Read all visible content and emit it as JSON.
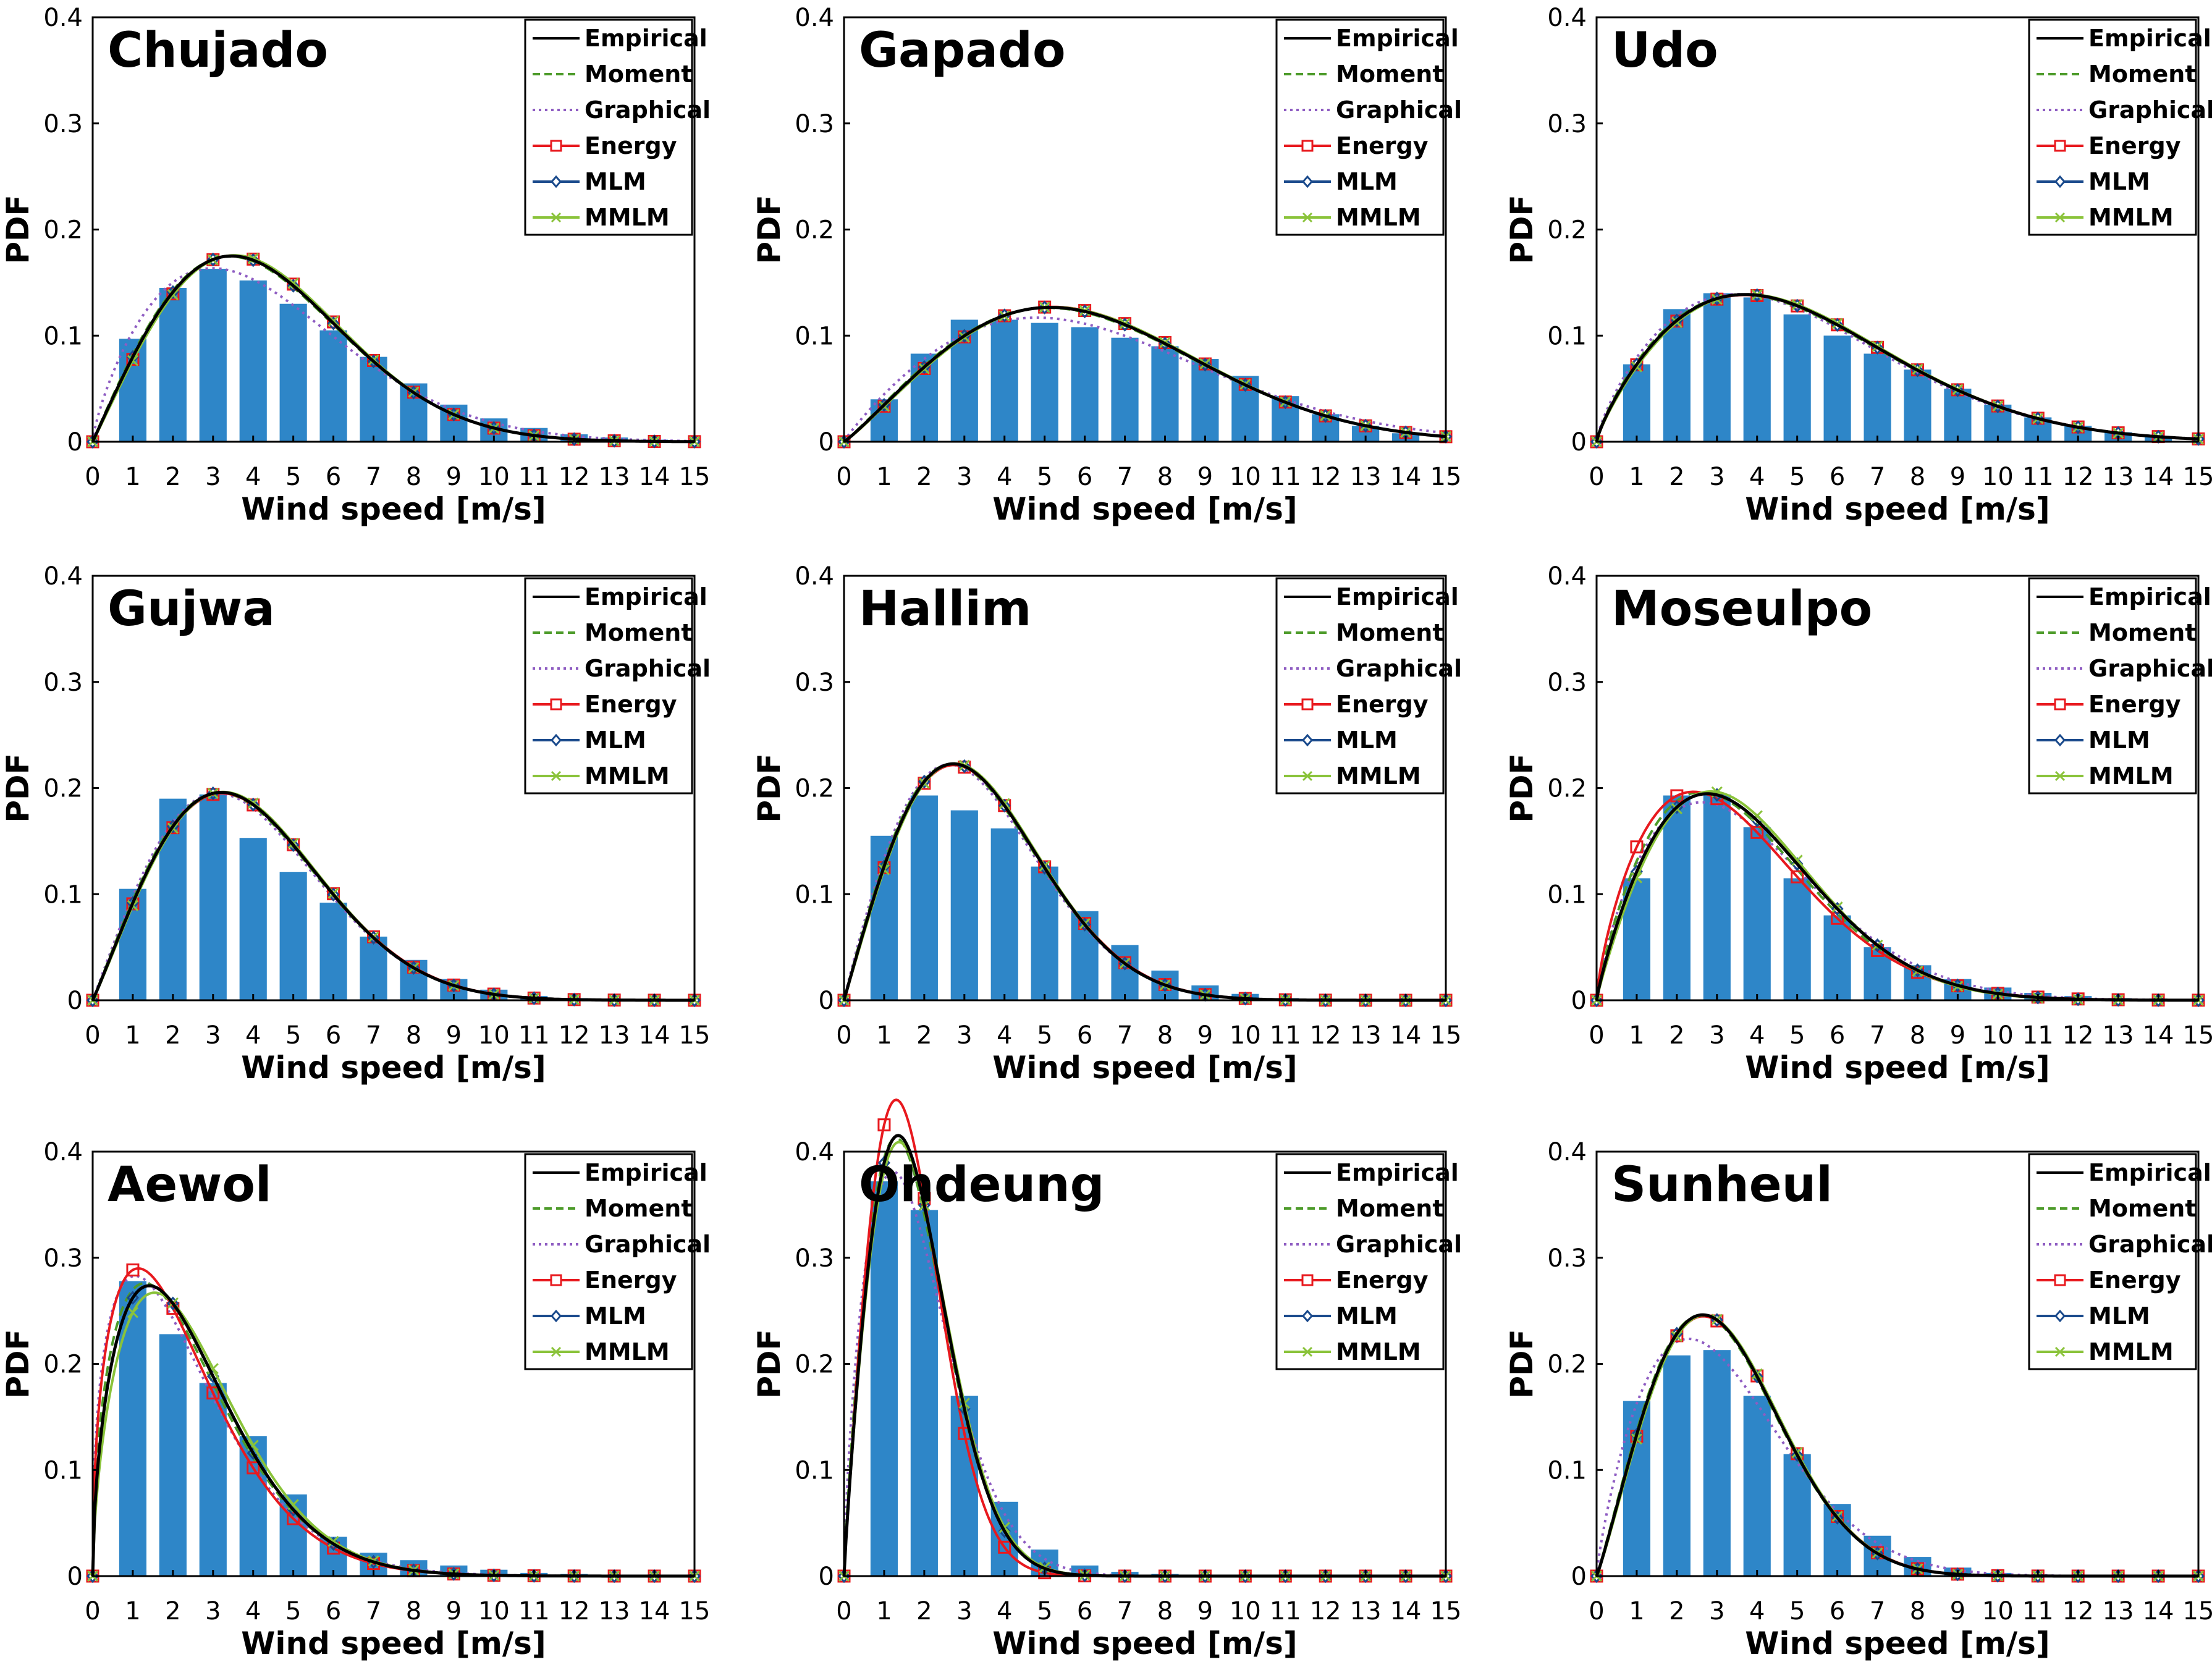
{
  "chart_data": {
    "type": "bar",
    "layout": "3x3 grid of panels",
    "colors": {
      "bars": "#2e86c8",
      "Empirical": "#000000",
      "Moment": "#4d9b2a",
      "Graphical": "#8e5cc2",
      "Energy": "#e8191e",
      "MLM": "#1a4a8c",
      "MMLM": "#8ac33a"
    },
    "series_styles": {
      "Empirical": "solid",
      "Moment": "dashed",
      "Graphical": "dotted",
      "Energy": "solid-square-markers",
      "MLM": "solid-diamond-markers",
      "MMLM": "solid-x-markers"
    },
    "legend": [
      "Empirical",
      "Moment",
      "Graphical",
      "Energy",
      "MLM",
      "MMLM"
    ],
    "legend_position": "top-right",
    "xlabel": "Wind speed [m/s]",
    "ylabel": "PDF",
    "xlim": [
      0,
      15
    ],
    "ylim": [
      0,
      0.4
    ],
    "xticks": [
      "0",
      "1",
      "2",
      "3",
      "4",
      "5",
      "6",
      "7",
      "8",
      "9",
      "10",
      "11",
      "12",
      "13",
      "14",
      "15"
    ],
    "yticks": [
      "0",
      "0.1",
      "0.2",
      "0.3",
      "0.4"
    ],
    "bar_x": [
      1,
      2,
      3,
      4,
      5,
      6,
      7,
      8,
      9,
      10,
      11,
      12,
      13,
      14
    ],
    "panels": [
      {
        "title": "Chujado",
        "bars": [
          0.097,
          0.145,
          0.163,
          0.152,
          0.13,
          0.105,
          0.08,
          0.055,
          0.035,
          0.022,
          0.013,
          0.007,
          0.004,
          0.002
        ],
        "weibull": {
          "Empirical": [
            2.0,
            4.9
          ],
          "Moment": [
            1.98,
            4.88
          ],
          "Graphical": [
            1.75,
            4.85
          ],
          "Energy": [
            2.02,
            4.92
          ],
          "MLM": [
            2.0,
            4.9
          ],
          "MMLM": [
            2.03,
            4.93
          ]
        }
      },
      {
        "title": "Gapado",
        "bars": [
          0.04,
          0.083,
          0.115,
          0.115,
          0.112,
          0.108,
          0.098,
          0.09,
          0.078,
          0.062,
          0.043,
          0.026,
          0.015,
          0.008
        ],
        "weibull": {
          "Empirical": [
            2.1,
            7.0
          ],
          "Moment": [
            2.08,
            6.98
          ],
          "Graphical": [
            1.9,
            7.1
          ],
          "Energy": [
            2.12,
            7.02
          ],
          "MLM": [
            2.1,
            7.0
          ],
          "MMLM": [
            2.12,
            7.03
          ]
        }
      },
      {
        "title": "Udo",
        "bars": [
          0.073,
          0.125,
          0.14,
          0.136,
          0.12,
          0.1,
          0.083,
          0.068,
          0.05,
          0.035,
          0.023,
          0.015,
          0.009,
          0.005
        ],
        "weibull": {
          "Empirical": [
            1.8,
            5.8
          ],
          "Moment": [
            1.78,
            5.78
          ],
          "Graphical": [
            1.75,
            5.7
          ],
          "Energy": [
            1.8,
            5.82
          ],
          "MLM": [
            1.8,
            5.8
          ],
          "MMLM": [
            1.82,
            5.83
          ]
        }
      },
      {
        "title": "Gujwa",
        "bars": [
          0.105,
          0.19,
          0.194,
          0.153,
          0.121,
          0.092,
          0.06,
          0.038,
          0.02,
          0.01,
          0.004,
          0.002,
          0.001,
          0.0
        ],
        "weibull": {
          "Empirical": [
            2.05,
            4.45
          ],
          "Moment": [
            2.03,
            4.43
          ],
          "Graphical": [
            2.0,
            4.4
          ],
          "Energy": [
            2.05,
            4.47
          ],
          "MLM": [
            2.05,
            4.45
          ],
          "MMLM": [
            2.07,
            4.47
          ]
        }
      },
      {
        "title": "Hallim",
        "bars": [
          0.155,
          0.193,
          0.179,
          0.162,
          0.126,
          0.084,
          0.052,
          0.028,
          0.014,
          0.006,
          0.002,
          0.001,
          0.0,
          0.0
        ],
        "weibull": {
          "Empirical": [
            2.0,
            3.85
          ],
          "Moment": [
            1.98,
            3.83
          ],
          "Graphical": [
            1.95,
            3.8
          ],
          "Energy": [
            2.0,
            3.87
          ],
          "MLM": [
            2.0,
            3.85
          ],
          "MMLM": [
            2.02,
            3.87
          ]
        }
      },
      {
        "title": "Moseulpo",
        "bars": [
          0.115,
          0.193,
          0.194,
          0.163,
          0.115,
          0.08,
          0.05,
          0.033,
          0.02,
          0.012,
          0.007,
          0.004,
          0.002,
          0.001
        ],
        "weibull": {
          "Empirical": [
            1.85,
            4.2
          ],
          "Moment": [
            1.8,
            4.1
          ],
          "Graphical": [
            1.75,
            4.25
          ],
          "Energy": [
            1.72,
            4.0
          ],
          "MLM": [
            1.85,
            4.2
          ],
          "MMLM": [
            1.9,
            4.22
          ]
        }
      },
      {
        "title": "Aewol",
        "bars": [
          0.278,
          0.228,
          0.182,
          0.132,
          0.077,
          0.037,
          0.022,
          0.015,
          0.01,
          0.006,
          0.003,
          0.002,
          0.001,
          0.0
        ],
        "weibull": {
          "Empirical": [
            1.55,
            2.75
          ],
          "Moment": [
            1.5,
            2.7
          ],
          "Graphical": [
            1.4,
            2.6
          ],
          "Energy": [
            1.45,
            2.55
          ],
          "MLM": [
            1.55,
            2.75
          ],
          "MMLM": [
            1.6,
            2.85
          ]
        }
      },
      {
        "title": "Ohdeung",
        "bars": [
          0.372,
          0.345,
          0.17,
          0.07,
          0.025,
          0.01,
          0.004,
          0.002,
          0.001,
          0.0,
          0.0,
          0.0,
          0.0,
          0.0
        ],
        "weibull": {
          "Empirical": [
            1.9,
            2.0
          ],
          "Moment": [
            1.85,
            1.98
          ],
          "Graphical": [
            1.7,
            2.05
          ],
          "Energy": [
            1.95,
            1.88
          ],
          "MLM": [
            1.9,
            2.0
          ],
          "MMLM": [
            1.9,
            2.03
          ]
        }
      },
      {
        "title": "Sunheul",
        "bars": [
          0.165,
          0.208,
          0.213,
          0.17,
          0.115,
          0.068,
          0.038,
          0.018,
          0.008,
          0.003,
          0.001,
          0.0,
          0.0,
          0.0
        ],
        "weibull": {
          "Empirical": [
            2.1,
            3.6
          ],
          "Moment": [
            2.08,
            3.58
          ],
          "Graphical": [
            1.8,
            3.6
          ],
          "Energy": [
            2.1,
            3.62
          ],
          "MLM": [
            2.1,
            3.6
          ],
          "MMLM": [
            2.12,
            3.63
          ]
        }
      }
    ]
  }
}
